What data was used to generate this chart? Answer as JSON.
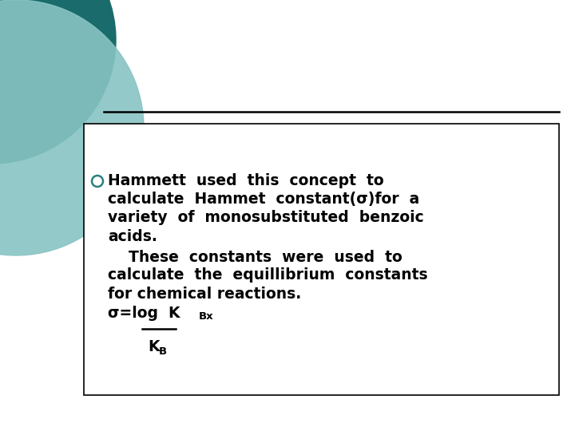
{
  "background_color": "#ffffff",
  "teal_dark": "#1a6b6b",
  "teal_light": "#88c4c4",
  "line_color": "#000000",
  "box_border_color": "#000000",
  "text_color": "#000000",
  "bullet_stroke": "#2a8080",
  "line1": "Hammett  used  this  concept  to",
  "line2": "calculate  Hammet  constant(σ)for  a",
  "line3": "variety  of  monosubstituted  benzoic",
  "line4": "acids.",
  "line5": "    These  constants  were  used  to",
  "line6": "calculate  the  equillibrium  constants",
  "line7": "for chemical reactions.",
  "sigma_text": "σ=log  K",
  "KBx_text": "Bx",
  "KB_text": "K",
  "KB_sub_text": "B"
}
